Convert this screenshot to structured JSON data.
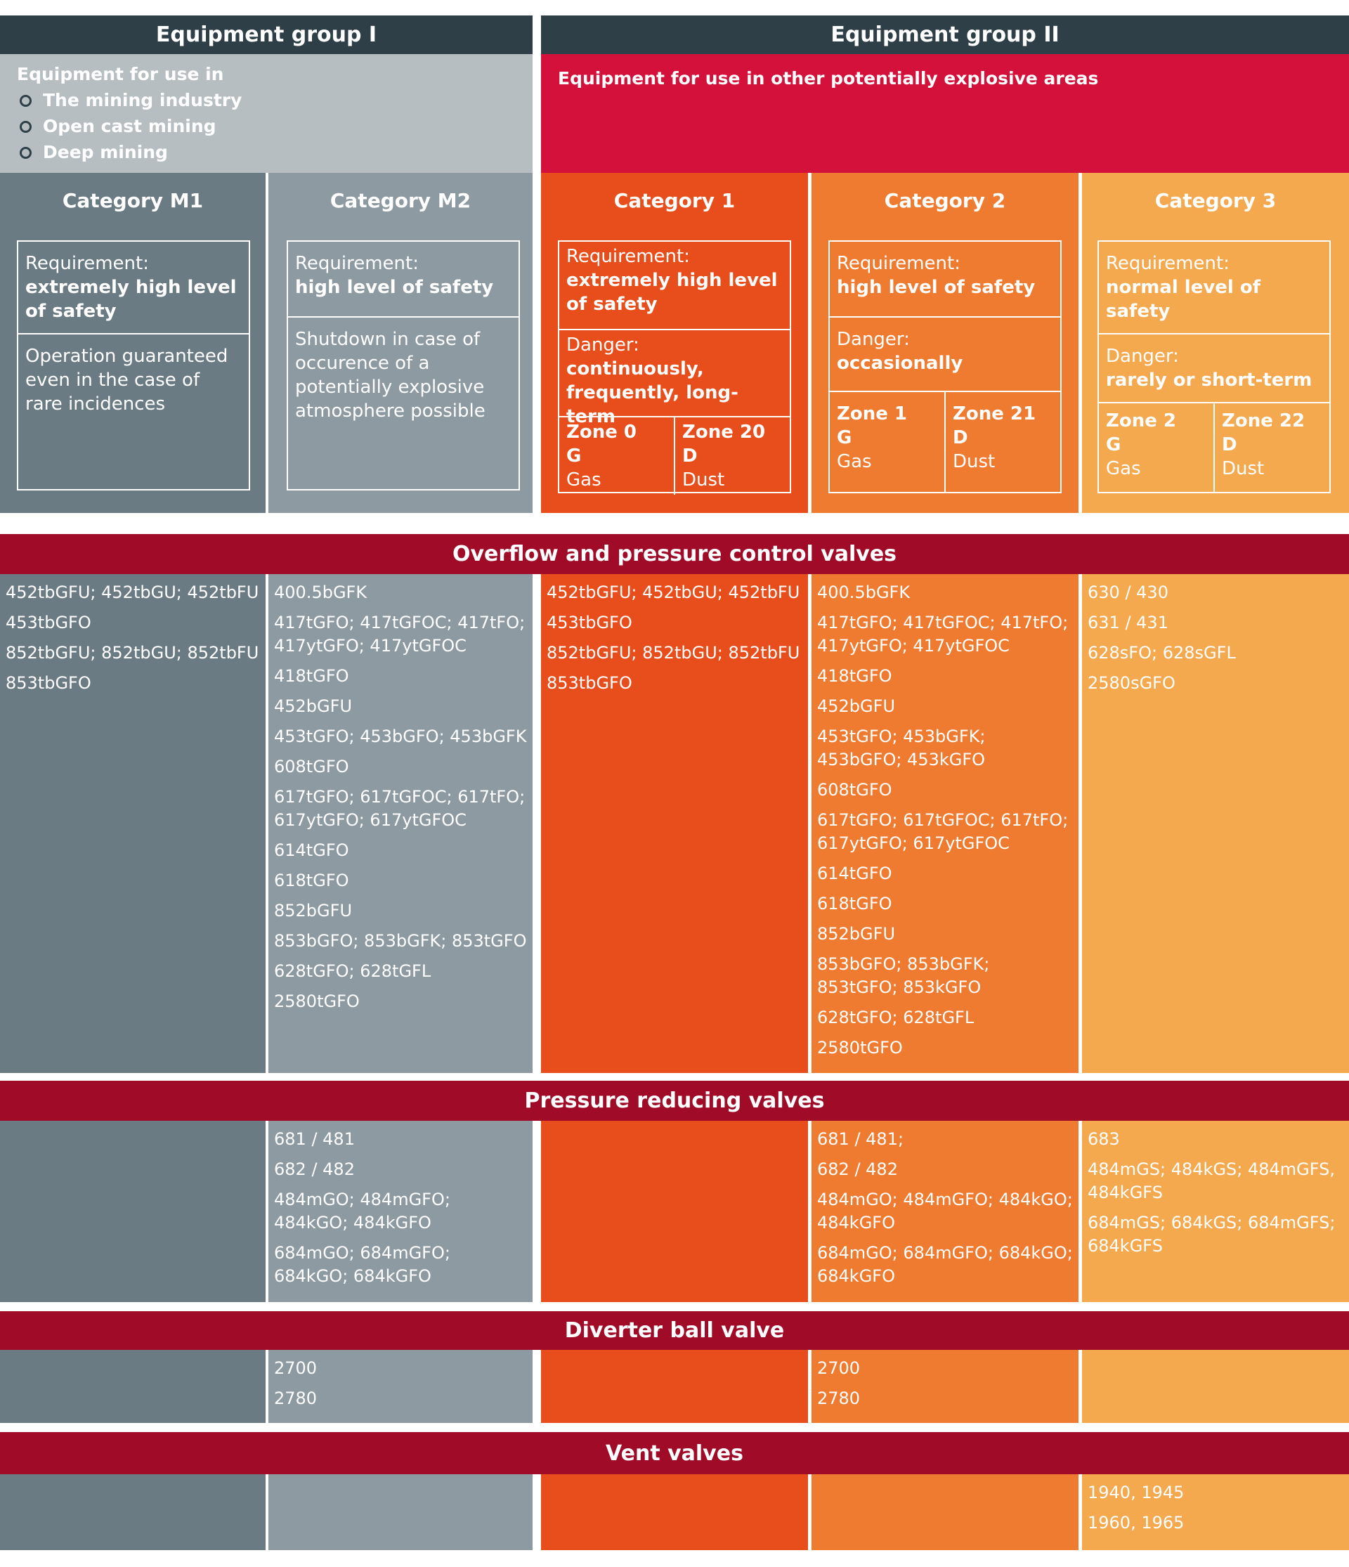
{
  "groups": {
    "g1": {
      "title": "Equipment group I",
      "desc": "Equipment for use in",
      "items": [
        "The mining industry",
        "Open cast mining",
        "Deep mining"
      ]
    },
    "g2": {
      "title": "Equipment group II",
      "desc": "Equipment for use in other potentially explosive areas"
    }
  },
  "categories": {
    "m1": {
      "title": "Category M1",
      "req_label": "Requirement:",
      "req_value": "extremely high level of safety",
      "note": "Operation guaranteed even in the case of rare incidences"
    },
    "m2": {
      "title": "Category M2",
      "req_label": "Requirement:",
      "req_value": "high level of safety",
      "note": "Shutdown in case of occurence of a potentially explosive atmosphere possible"
    },
    "c1": {
      "title": "Category 1",
      "req_label": "Requirement:",
      "req_value": "extremely high level of safety",
      "danger_label": "Danger:",
      "danger_value": "continuously, frequently, long-term",
      "zones": [
        {
          "zone": "Zone 0",
          "letter": "G",
          "medium": "Gas"
        },
        {
          "zone": "Zone 20",
          "letter": "D",
          "medium": "Dust"
        }
      ]
    },
    "c2": {
      "title": "Category 2",
      "req_label": "Requirement:",
      "req_value": "high level of safety",
      "danger_label": "Danger:",
      "danger_value": "occasionally",
      "zones": [
        {
          "zone": "Zone 1",
          "letter": "G",
          "medium": "Gas"
        },
        {
          "zone": "Zone 21",
          "letter": "D",
          "medium": "Dust"
        }
      ]
    },
    "c3": {
      "title": "Category 3",
      "req_label": "Requirement:",
      "req_value": "normal level of safety",
      "danger_label": "Danger:",
      "danger_value": "rarely or short-term",
      "zones": [
        {
          "zone": "Zone 2",
          "letter": "G",
          "medium": "Gas"
        },
        {
          "zone": "Zone 22",
          "letter": "D",
          "medium": "Dust"
        }
      ]
    }
  },
  "sections": [
    {
      "title": "Overflow and pressure control valves",
      "m1": [
        "452tbGFU; 452tbGU; 452tbFU",
        "453tbGFO",
        "852tbGFU; 852tbGU; 852tbFU",
        "853tbGFO"
      ],
      "m2": [
        "400.5bGFK",
        "417tGFO; 417tGFOC; 417tFO; 417ytGFO; 417ytGFOC",
        "418tGFO",
        "452bGFU",
        "453tGFO; 453bGFO; 453bGFK",
        "608tGFO",
        "617tGFO; 617tGFOC; 617tFO; 617ytGFO; 617ytGFOC",
        "614tGFO",
        "618tGFO",
        "852bGFU",
        "853bGFO; 853bGFK; 853tGFO",
        "628tGFO; 628tGFL",
        "2580tGFO"
      ],
      "c1": [
        "452tbGFU; 452tbGU; 452tbFU",
        "453tbGFO",
        "852tbGFU; 852tbGU; 852tbFU",
        "853tbGFO"
      ],
      "c2": [
        "400.5bGFK",
        "417tGFO; 417tGFOC; 417tFO; 417ytGFO; 417ytGFOC",
        "418tGFO",
        "452bGFU",
        "453tGFO; 453bGFK; 453bGFO; 453kGFO",
        "608tGFO",
        "617tGFO; 617tGFOC; 617tFO; 617ytGFO; 617ytGFOC",
        "614tGFO",
        "618tGFO",
        "852bGFU",
        "853bGFO; 853bGFK; 853tGFO; 853kGFO",
        "628tGFO; 628tGFL",
        "2580tGFO"
      ],
      "c3": [
        "630 / 430",
        "631 / 431",
        "628sFO; 628sGFL",
        "2580sGFO"
      ]
    },
    {
      "title": "Pressure reducing valves",
      "m1": [],
      "m2": [
        "681 / 481",
        "682 / 482",
        "484mGO; 484mGFO; 484kGO; 484kGFO",
        "684mGO; 684mGFO; 684kGO; 684kGFO"
      ],
      "c1": [],
      "c2": [
        "681 / 481;",
        "682 / 482",
        "484mGO; 484mGFO; 484kGO; 484kGFO",
        "684mGO; 684mGFO; 684kGO; 684kGFO"
      ],
      "c3": [
        "683",
        "484mGS; 484kGS; 484mGFS, 484kGFS",
        "684mGS; 684kGS; 684mGFS; 684kGFS"
      ]
    },
    {
      "title": "Diverter ball valve",
      "m1": [],
      "m2": [
        "2700",
        "2780"
      ],
      "c1": [],
      "c2": [
        "2700",
        "2780"
      ],
      "c3": []
    },
    {
      "title": "Vent valves",
      "m1": [],
      "m2": [],
      "c1": [],
      "c2": [],
      "c3": [
        "1940, 1945",
        "1960, 1965"
      ]
    }
  ]
}
